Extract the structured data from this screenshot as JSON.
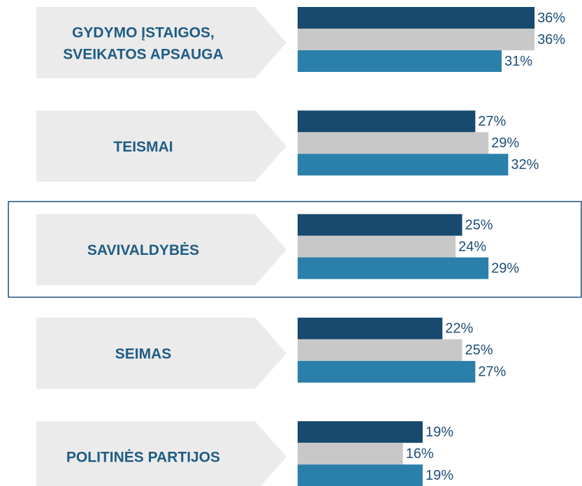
{
  "chart_data": {
    "type": "bar",
    "orientation": "horizontal",
    "categories": [
      "GYDYMO ĮSTAIGOS,\nSVEIKATOS APSAUGA",
      "TEISMAI",
      "SAVIVALDYBĖS",
      "SEIMAS",
      "POLITINĖS PARTIJOS"
    ],
    "series": [
      {
        "color": "#174a6e",
        "values": [
          36,
          27,
          25,
          22,
          19
        ],
        "value_labels": [
          "36%",
          "27%",
          "25%",
          "22%",
          "19%"
        ]
      },
      {
        "color": "#c8c8c8",
        "values": [
          36,
          29,
          24,
          25,
          16
        ],
        "value_labels": [
          "36%",
          "29%",
          "24%",
          "25%",
          "16%"
        ]
      },
      {
        "color": "#2a80aa",
        "values": [
          31,
          32,
          29,
          27,
          19
        ],
        "value_labels": [
          "31%",
          "32%",
          "29%",
          "27%",
          "19%"
        ]
      }
    ],
    "xlim": [
      0,
      43
    ],
    "highlight": 2
  }
}
